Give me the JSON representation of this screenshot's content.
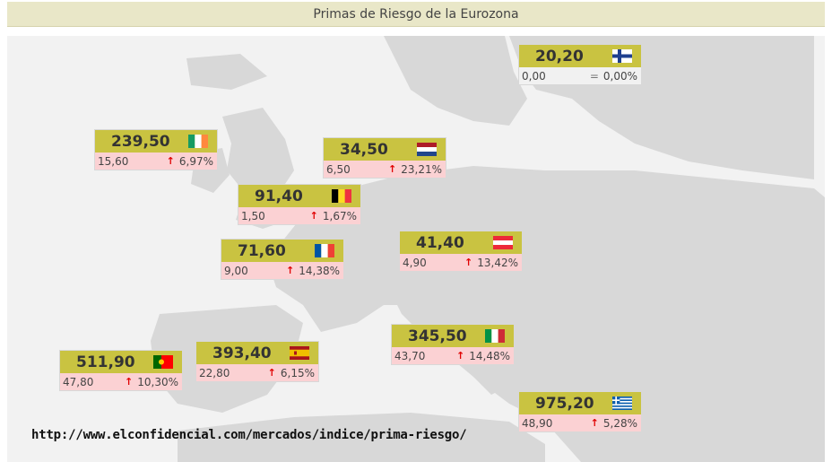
{
  "title": "Primas de Riesgo de la Eurozona",
  "url": "http://www.elconfidencial.com/mercados/indice/prima-riesgo/",
  "colors": {
    "value_bar": "#c9c341",
    "up_row": "#fbd1d3",
    "neutral_row": "#f1f1f1",
    "arrow": "#e00000"
  },
  "countries": [
    {
      "key": "finland",
      "flag": "finland-flag",
      "value": "20,20",
      "change": "0,00",
      "trend": "=",
      "pct": "0,00%"
    },
    {
      "key": "ireland",
      "flag": "ireland-flag",
      "value": "239,50",
      "change": "15,60",
      "trend": "↑",
      "pct": "6,97%"
    },
    {
      "key": "netherlands",
      "flag": "netherlands-flag",
      "value": "34,50",
      "change": "6,50",
      "trend": "↑",
      "pct": "23,21%"
    },
    {
      "key": "belgium",
      "flag": "belgium-flag",
      "value": "91,40",
      "change": "1,50",
      "trend": "↑",
      "pct": "1,67%"
    },
    {
      "key": "france",
      "flag": "france-flag",
      "value": "71,60",
      "change": "9,00",
      "trend": "↑",
      "pct": "14,38%"
    },
    {
      "key": "austria",
      "flag": "austria-flag",
      "value": "41,40",
      "change": "4,90",
      "trend": "↑",
      "pct": "13,42%"
    },
    {
      "key": "italy",
      "flag": "italy-flag",
      "value": "345,50",
      "change": "43,70",
      "trend": "↑",
      "pct": "14,48%"
    },
    {
      "key": "portugal",
      "flag": "portugal-flag",
      "value": "511,90",
      "change": "47,80",
      "trend": "↑",
      "pct": "10,30%"
    },
    {
      "key": "spain",
      "flag": "spain-flag",
      "value": "393,40",
      "change": "22,80",
      "trend": "↑",
      "pct": "6,15%"
    },
    {
      "key": "greece",
      "flag": "greece-flag",
      "value": "975,20",
      "change": "48,90",
      "trend": "↑",
      "pct": "5,28%"
    }
  ]
}
